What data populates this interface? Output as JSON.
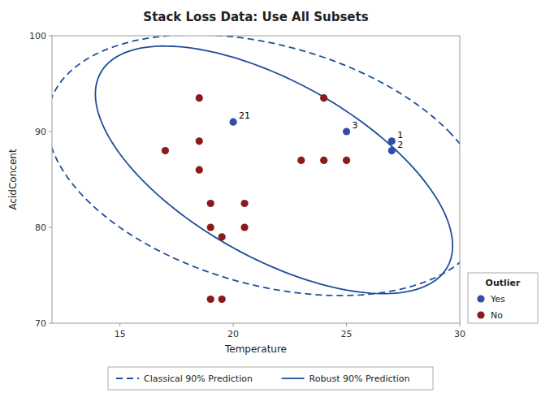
{
  "chart_data": {
    "type": "scatter",
    "title": "Stack Loss Data: Use All Subsets",
    "x_label": "Temperature",
    "y_label": "AcidConcent",
    "xlim": [
      12,
      30
    ],
    "ylim": [
      70,
      100
    ],
    "xticks": [
      15,
      20,
      25,
      30
    ],
    "yticks": [
      70,
      80,
      90,
      100
    ],
    "grid": false,
    "legend": "lower right",
    "legend_title": "Outlier",
    "series": [
      {
        "name": "Yes",
        "color": "#334CA8",
        "marker": "circle",
        "x": [
          20.0,
          25.0,
          27.0,
          27.0
        ],
        "y": [
          91.0,
          90.0,
          89.0,
          88.0
        ],
        "labels": [
          "21",
          "3",
          "1",
          "2"
        ]
      },
      {
        "name": "No",
        "color": "#8B1A1A",
        "marker": "circle",
        "x": [
          17.0,
          18.5,
          18.5,
          18.5,
          19.0,
          19.0,
          19.5,
          20.5,
          20.5,
          19.0,
          19.5,
          23.0,
          24.0,
          25.0,
          24.0
        ],
        "y": [
          88.0,
          89.0,
          86.0,
          93.5,
          82.5,
          80.0,
          79.0,
          82.5,
          80.0,
          72.5,
          72.5,
          87.0,
          87.0,
          87.0,
          93.5
        ]
      }
    ],
    "ellipses": [
      {
        "name": "Classical 90% Prediction",
        "color": "#1F4E9A",
        "line_style": "dashed",
        "cx": 21.5,
        "cy": 86.5,
        "width": 17.5,
        "height": 28.5,
        "angle": 22
      },
      {
        "name": "Robust 90% Prediction",
        "color": "#1F4E9A",
        "line_style": "solid",
        "cx": 21.8,
        "cy": 86.0,
        "width": 11.5,
        "height": 28.0,
        "angle": 25
      }
    ]
  }
}
